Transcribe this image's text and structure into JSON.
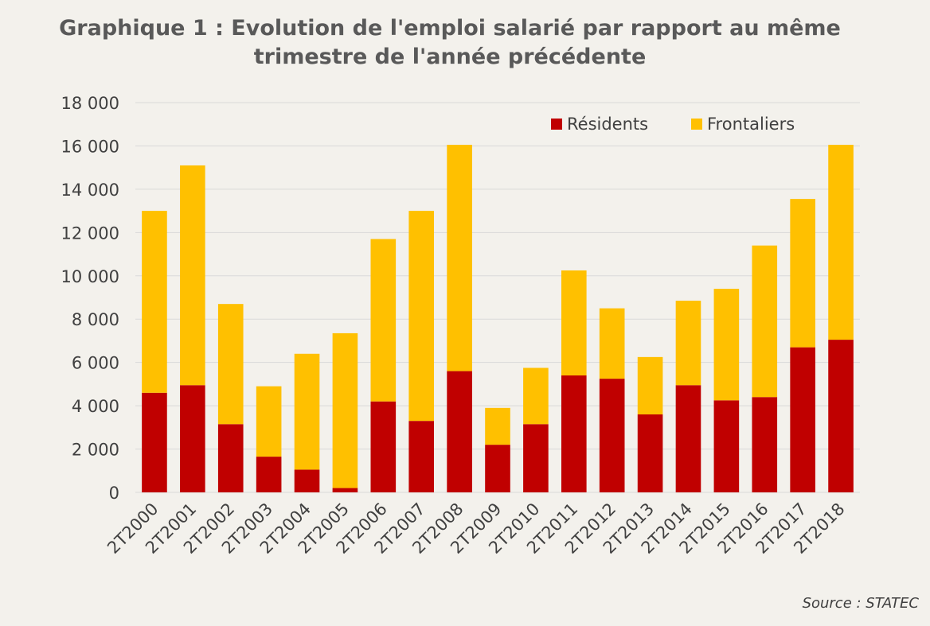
{
  "chart_data": {
    "type": "bar",
    "stacked": true,
    "title_lines": [
      "Graphique 1 : Evolution de l'emploi salarié par rapport au même",
      "trimestre de l'année précédente"
    ],
    "categories": [
      "2T2000",
      "2T2001",
      "2T2002",
      "2T2003",
      "2T2004",
      "2T2005",
      "2T2006",
      "2T2007",
      "2T2008",
      "2T2009",
      "2T2010",
      "2T2011",
      "2T2012",
      "2T2013",
      "2T2014",
      "2T2015",
      "2T2016",
      "2T2017",
      "2T2018"
    ],
    "series": [
      {
        "name": "Résidents",
        "color": "#c00000",
        "values": [
          4600,
          4950,
          3150,
          1650,
          1050,
          200,
          4200,
          3300,
          5600,
          2200,
          3150,
          5400,
          5250,
          3600,
          4950,
          4250,
          4400,
          6700,
          7050
        ]
      },
      {
        "name": "Frontaliers",
        "color": "#ffc000",
        "values": [
          8400,
          10150,
          5550,
          3250,
          5350,
          7150,
          7500,
          9700,
          10450,
          1700,
          2600,
          4850,
          3250,
          2650,
          3900,
          5150,
          7000,
          6850,
          9000
        ]
      }
    ],
    "ylim": [
      0,
      18000
    ],
    "yticks": [
      0,
      2000,
      4000,
      6000,
      8000,
      10000,
      12000,
      14000,
      16000,
      18000
    ],
    "ytick_labels": [
      "0",
      "2 000",
      "4 000",
      "6 000",
      "8 000",
      "10 000",
      "12 000",
      "14 000",
      "16 000",
      "18 000"
    ],
    "grid": true,
    "legend_position": "top-right",
    "source": "Source : STATEC"
  }
}
